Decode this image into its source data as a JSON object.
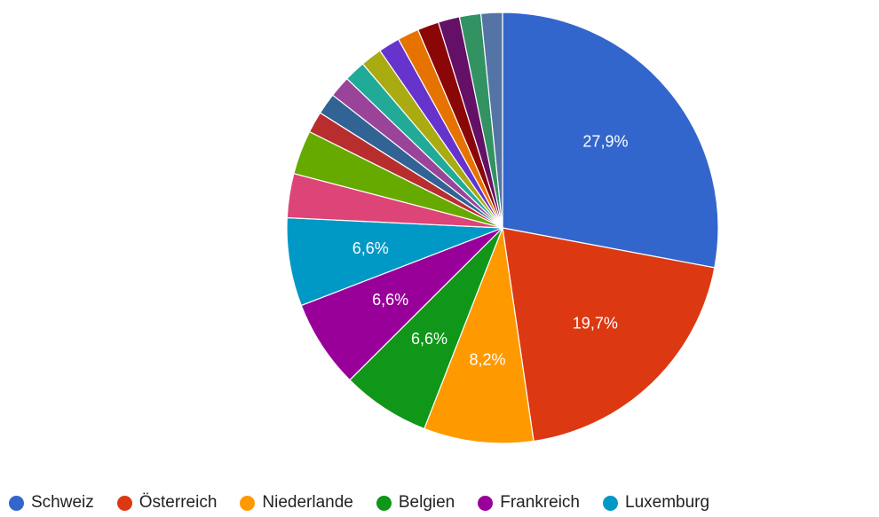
{
  "chart_data": {
    "type": "pie",
    "start_angle_deg": 0,
    "direction": "clockwise",
    "slices": [
      {
        "name": "Schweiz",
        "value": 27.9,
        "label": "27,9%",
        "color": "#3366cc"
      },
      {
        "name": "Österreich",
        "value": 19.7,
        "label": "19,7%",
        "color": "#dc3912"
      },
      {
        "name": "Niederlande",
        "value": 8.2,
        "label": "8,2%",
        "color": "#ff9900"
      },
      {
        "name": "Belgien",
        "value": 6.6,
        "label": "6,6%",
        "color": "#109618"
      },
      {
        "name": "Frankreich",
        "value": 6.6,
        "label": "6,6%",
        "color": "#990099"
      },
      {
        "name": "Luxemburg",
        "value": 6.6,
        "label": "6,6%",
        "color": "#0099c6"
      },
      {
        "name": "",
        "value": 3.3,
        "label": "",
        "color": "#dd4477"
      },
      {
        "name": "",
        "value": 3.3,
        "label": "",
        "color": "#66aa00"
      },
      {
        "name": "",
        "value": 1.6,
        "label": "",
        "color": "#b82e2e"
      },
      {
        "name": "",
        "value": 1.6,
        "label": "",
        "color": "#316395"
      },
      {
        "name": "",
        "value": 1.6,
        "label": "",
        "color": "#994499"
      },
      {
        "name": "",
        "value": 1.6,
        "label": "",
        "color": "#22aa99"
      },
      {
        "name": "",
        "value": 1.6,
        "label": "",
        "color": "#aaaa11"
      },
      {
        "name": "",
        "value": 1.6,
        "label": "",
        "color": "#6633cc"
      },
      {
        "name": "",
        "value": 1.6,
        "label": "",
        "color": "#e67300"
      },
      {
        "name": "",
        "value": 1.6,
        "label": "",
        "color": "#8b0707"
      },
      {
        "name": "",
        "value": 1.6,
        "label": "",
        "color": "#651067"
      },
      {
        "name": "",
        "value": 1.6,
        "label": "",
        "color": "#329262"
      },
      {
        "name": "",
        "value": 1.6,
        "label": "",
        "color": "#5574a6"
      }
    ],
    "legend": {
      "placement": "bottom",
      "entries": [
        {
          "label": "Schweiz",
          "color": "#3366cc"
        },
        {
          "label": "Österreich",
          "color": "#dc3912"
        },
        {
          "label": "Niederlande",
          "color": "#ff9900"
        },
        {
          "label": "Belgien",
          "color": "#109618"
        },
        {
          "label": "Frankreich",
          "color": "#990099"
        },
        {
          "label": "Luxemburg",
          "color": "#0099c6"
        }
      ]
    }
  }
}
